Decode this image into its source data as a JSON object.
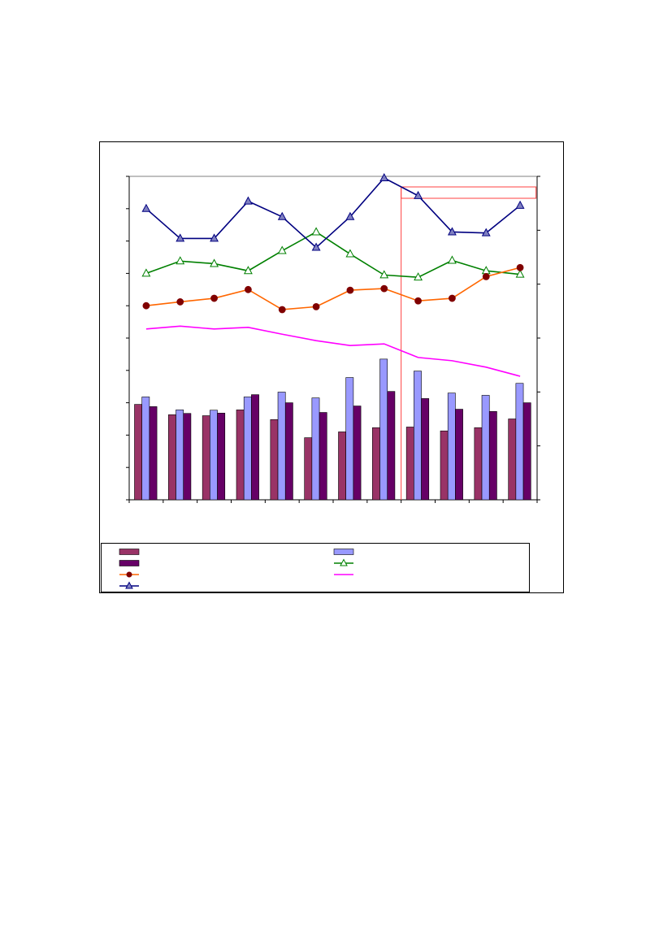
{
  "chart_data": {
    "type": "bar",
    "title": "",
    "xlabel": "",
    "ylabel": "",
    "categories": [
      "",
      "",
      "",
      "",
      "",
      "",
      "",
      "",
      "",
      "",
      "",
      ""
    ],
    "left_axis": {
      "ylim": [
        0,
        10
      ],
      "tick_count": 11
    },
    "right_axis": {
      "ylim": [
        0,
        6
      ],
      "tick_count": 7
    },
    "grid": false,
    "legend_placement": "bottom",
    "forecast_start_index": 8,
    "bar_series": [
      {
        "name": "",
        "color": "#993366",
        "axis": "left",
        "values": [
          2.95,
          2.63,
          2.6,
          2.78,
          2.48,
          1.92,
          2.1,
          2.23,
          2.25,
          2.13,
          2.23,
          2.5
        ]
      },
      {
        "name": "",
        "color": "#9999ff",
        "axis": "left",
        "values": [
          3.18,
          2.78,
          2.77,
          3.18,
          3.33,
          3.15,
          3.78,
          4.35,
          3.98,
          3.3,
          3.23,
          3.6
        ]
      },
      {
        "name": "",
        "color": "#660066",
        "axis": "left",
        "values": [
          2.88,
          2.67,
          2.68,
          3.25,
          3.0,
          2.7,
          2.9,
          3.35,
          3.13,
          2.8,
          2.73,
          3.0
        ]
      }
    ],
    "line_series": [
      {
        "name": "",
        "color": "#008000",
        "marker": "triangle-open",
        "axis": "left",
        "values": [
          7.0,
          7.38,
          7.3,
          7.08,
          7.7,
          8.28,
          7.6,
          6.95,
          6.88,
          7.4,
          7.08,
          6.97
        ]
      },
      {
        "name": "",
        "color": "#ff6600",
        "marker": "circle",
        "marker_color": "#800000",
        "axis": "left",
        "values": [
          6.0,
          6.12,
          6.23,
          6.5,
          5.88,
          5.97,
          6.48,
          6.53,
          6.15,
          6.23,
          6.9,
          7.18
        ]
      },
      {
        "name": "",
        "color": "#ff00ff",
        "marker": "none",
        "axis": "left",
        "values": [
          5.28,
          5.37,
          5.28,
          5.33,
          5.12,
          4.92,
          4.77,
          4.82,
          4.4,
          4.3,
          4.1,
          3.82
        ]
      },
      {
        "name": "",
        "color": "#000080",
        "marker": "triangle-filled",
        "marker_color": "#8080c0",
        "axis": "left",
        "values": [
          9.0,
          8.08,
          8.08,
          9.23,
          8.75,
          7.8,
          8.75,
          9.95,
          9.4,
          8.28,
          8.25,
          9.1
        ]
      }
    ]
  }
}
